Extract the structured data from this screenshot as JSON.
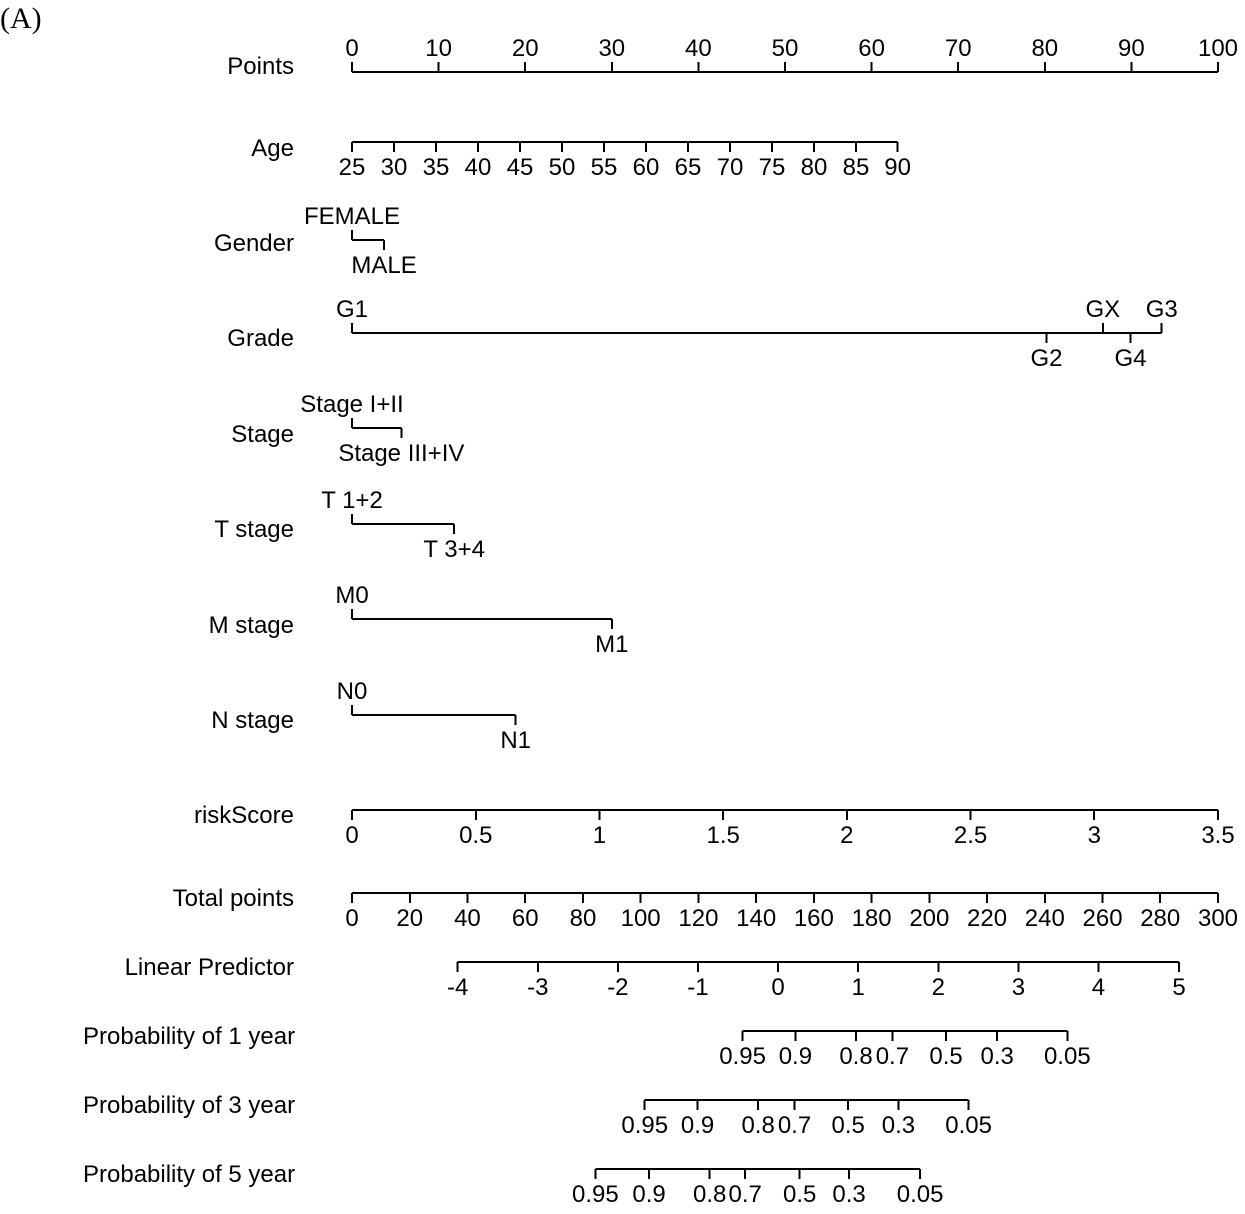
{
  "panel_label": "(A)",
  "chart_data": {
    "type": "nomogram",
    "title": "",
    "point_scale_max": 100,
    "rows": [
      {
        "id": "points",
        "label": "Points",
        "kind": "scale",
        "start_points": 0,
        "end_points": 100,
        "side": "above",
        "ticks": [
          {
            "text": "0",
            "points": 0
          },
          {
            "text": "10",
            "points": 10
          },
          {
            "text": "20",
            "points": 20
          },
          {
            "text": "30",
            "points": 30
          },
          {
            "text": "40",
            "points": 40
          },
          {
            "text": "50",
            "points": 50
          },
          {
            "text": "60",
            "points": 60
          },
          {
            "text": "70",
            "points": 70
          },
          {
            "text": "80",
            "points": 80
          },
          {
            "text": "90",
            "points": 90
          },
          {
            "text": "100",
            "points": 100
          }
        ]
      },
      {
        "id": "age",
        "label": "Age",
        "kind": "scale",
        "start_points": 0,
        "end_points": 63,
        "side": "below",
        "ticks": [
          {
            "text": "25",
            "points": 0
          },
          {
            "text": "30",
            "points": 4.85
          },
          {
            "text": "35",
            "points": 9.7
          },
          {
            "text": "40",
            "points": 14.55
          },
          {
            "text": "45",
            "points": 19.4
          },
          {
            "text": "50",
            "points": 24.25
          },
          {
            "text": "55",
            "points": 29.1
          },
          {
            "text": "60",
            "points": 33.95
          },
          {
            "text": "65",
            "points": 38.8
          },
          {
            "text": "70",
            "points": 43.65
          },
          {
            "text": "75",
            "points": 48.5
          },
          {
            "text": "80",
            "points": 53.35
          },
          {
            "text": "85",
            "points": 58.2
          },
          {
            "text": "90",
            "points": 63
          }
        ]
      },
      {
        "id": "gender",
        "label": "Gender",
        "kind": "categorical",
        "start_points": 0,
        "end_points": 3.7,
        "ticks": [
          {
            "text": "FEMALE",
            "points": 0,
            "side": "above"
          },
          {
            "text": "MALE",
            "points": 3.7,
            "side": "below"
          }
        ]
      },
      {
        "id": "grade",
        "label": "Grade",
        "kind": "categorical",
        "start_points": 0,
        "end_points": 93.5,
        "ticks": [
          {
            "text": "G1",
            "points": 0,
            "side": "above"
          },
          {
            "text": "G2",
            "points": 80.2,
            "side": "below"
          },
          {
            "text": "GX",
            "points": 86.7,
            "side": "above"
          },
          {
            "text": "G4",
            "points": 89.9,
            "side": "below"
          },
          {
            "text": "G3",
            "points": 93.5,
            "side": "above"
          }
        ]
      },
      {
        "id": "stage",
        "label": "Stage",
        "kind": "categorical",
        "start_points": 0,
        "end_points": 5.7,
        "ticks": [
          {
            "text": "Stage I+II",
            "points": 0,
            "side": "above"
          },
          {
            "text": "Stage III+IV",
            "points": 5.7,
            "side": "below"
          }
        ]
      },
      {
        "id": "t_stage",
        "label": "T stage",
        "kind": "categorical",
        "start_points": 0,
        "end_points": 11.8,
        "ticks": [
          {
            "text": "T 1+2",
            "points": 0,
            "side": "above"
          },
          {
            "text": "T 3+4",
            "points": 11.8,
            "side": "below"
          }
        ]
      },
      {
        "id": "m_stage",
        "label": "M stage",
        "kind": "categorical",
        "start_points": 0,
        "end_points": 30,
        "ticks": [
          {
            "text": "M0",
            "points": 0,
            "side": "above"
          },
          {
            "text": "M1",
            "points": 30,
            "side": "below"
          }
        ]
      },
      {
        "id": "n_stage",
        "label": "N stage",
        "kind": "categorical",
        "start_points": 0,
        "end_points": 18.9,
        "ticks": [
          {
            "text": "N0",
            "points": 0,
            "side": "above"
          },
          {
            "text": "N1",
            "points": 18.9,
            "side": "below"
          }
        ]
      },
      {
        "id": "risk_score",
        "label": "riskScore",
        "kind": "scale",
        "start_points": 0,
        "end_points": 100,
        "side": "below",
        "ticks": [
          {
            "text": "0",
            "points": 0
          },
          {
            "text": "0.5",
            "points": 14.29
          },
          {
            "text": "1",
            "points": 28.57
          },
          {
            "text": "1.5",
            "points": 42.86
          },
          {
            "text": "2",
            "points": 57.14
          },
          {
            "text": "2.5",
            "points": 71.43
          },
          {
            "text": "3",
            "points": 85.71
          },
          {
            "text": "3.5",
            "points": 100
          }
        ]
      },
      {
        "id": "total_points",
        "label": "Total points",
        "kind": "scale",
        "start_points": 0,
        "end_points": 100,
        "side": "below",
        "ticks": [
          {
            "text": "0",
            "points": 0
          },
          {
            "text": "20",
            "points": 6.67
          },
          {
            "text": "40",
            "points": 13.33
          },
          {
            "text": "60",
            "points": 20
          },
          {
            "text": "80",
            "points": 26.67
          },
          {
            "text": "100",
            "points": 33.33
          },
          {
            "text": "120",
            "points": 40
          },
          {
            "text": "140",
            "points": 46.67
          },
          {
            "text": "160",
            "points": 53.33
          },
          {
            "text": "180",
            "points": 60
          },
          {
            "text": "200",
            "points": 66.67
          },
          {
            "text": "220",
            "points": 73.33
          },
          {
            "text": "240",
            "points": 80
          },
          {
            "text": "260",
            "points": 86.67
          },
          {
            "text": "280",
            "points": 93.33
          },
          {
            "text": "300",
            "points": 100
          }
        ]
      },
      {
        "id": "linear_predictor",
        "label": "Linear Predictor",
        "kind": "scale",
        "start_points": 12.2,
        "end_points": 95.5,
        "side": "below",
        "ticks": [
          {
            "text": "-4",
            "points": 12.2
          },
          {
            "text": "-3",
            "points": 21.45
          },
          {
            "text": "-2",
            "points": 30.7
          },
          {
            "text": "-1",
            "points": 39.95
          },
          {
            "text": "0",
            "points": 49.2
          },
          {
            "text": "1",
            "points": 58.45
          },
          {
            "text": "2",
            "points": 67.7
          },
          {
            "text": "3",
            "points": 76.95
          },
          {
            "text": "4",
            "points": 86.2
          },
          {
            "text": "5",
            "points": 95.5
          }
        ]
      },
      {
        "id": "prob_1y",
        "label": "Probability of 1 year",
        "kind": "scale",
        "start_points": 45.1,
        "end_points": 82.6,
        "side": "below",
        "ticks": [
          {
            "text": "0.95",
            "points": 45.1
          },
          {
            "text": "0.9",
            "points": 51.2
          },
          {
            "text": "0.8",
            "points": 58.2
          },
          {
            "text": "0.7",
            "points": 62.4
          },
          {
            "text": "0.5",
            "points": 68.6
          },
          {
            "text": "0.3",
            "points": 74.5
          },
          {
            "text": "0.05",
            "points": 82.6
          }
        ]
      },
      {
        "id": "prob_3y",
        "label": "Probability of 3 year",
        "kind": "scale",
        "start_points": 33.8,
        "end_points": 71.2,
        "side": "below",
        "ticks": [
          {
            "text": "0.95",
            "points": 33.8
          },
          {
            "text": "0.9",
            "points": 39.9
          },
          {
            "text": "0.8",
            "points": 46.9
          },
          {
            "text": "0.7",
            "points": 51.1
          },
          {
            "text": "0.5",
            "points": 57.3
          },
          {
            "text": "0.3",
            "points": 63.1
          },
          {
            "text": "0.05",
            "points": 71.2
          }
        ]
      },
      {
        "id": "prob_5y",
        "label": "Probability of 5 year",
        "kind": "scale",
        "start_points": 28.1,
        "end_points": 65.6,
        "side": "below",
        "ticks": [
          {
            "text": "0.95",
            "points": 28.1
          },
          {
            "text": "0.9",
            "points": 34.3
          },
          {
            "text": "0.8",
            "points": 41.3
          },
          {
            "text": "0.7",
            "points": 45.4
          },
          {
            "text": "0.5",
            "points": 51.7
          },
          {
            "text": "0.3",
            "points": 57.4
          },
          {
            "text": "0.05",
            "points": 65.6
          }
        ]
      }
    ]
  }
}
